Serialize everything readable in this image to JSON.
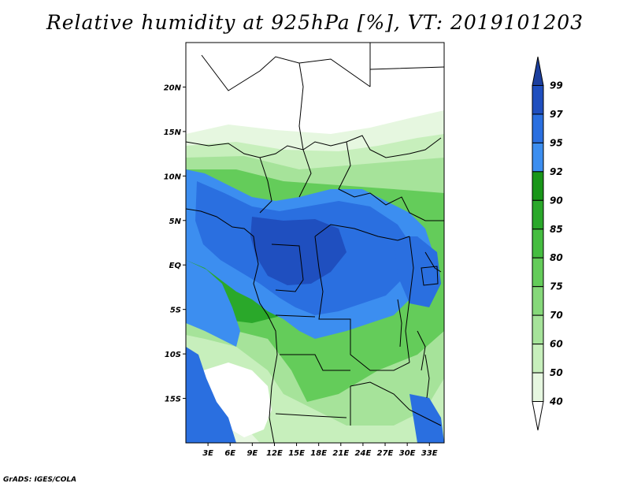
{
  "title": "Relative humidity at 925hPa [%], VT: 2019101203",
  "credit": "GrADS: IGES/COLA",
  "map": {
    "lon_range": [
      0,
      35
    ],
    "lat_range": [
      -20,
      25
    ],
    "lat_ticks": [
      {
        "value": 20,
        "label": "20N"
      },
      {
        "value": 15,
        "label": "15N"
      },
      {
        "value": 10,
        "label": "10N"
      },
      {
        "value": 5,
        "label": "5N"
      },
      {
        "value": 0,
        "label": "EQ"
      },
      {
        "value": -5,
        "label": "5S"
      },
      {
        "value": -10,
        "label": "10S"
      },
      {
        "value": -15,
        "label": "15S"
      }
    ],
    "lon_ticks": [
      {
        "value": 3,
        "label": "3E"
      },
      {
        "value": 6,
        "label": "6E"
      },
      {
        "value": 9,
        "label": "9E"
      },
      {
        "value": 12,
        "label": "12E"
      },
      {
        "value": 15,
        "label": "15E"
      },
      {
        "value": 18,
        "label": "18E"
      },
      {
        "value": 21,
        "label": "21E"
      },
      {
        "value": 24,
        "label": "24E"
      },
      {
        "value": 27,
        "label": "27E"
      },
      {
        "value": 30,
        "label": "30E"
      },
      {
        "value": 33,
        "label": "33E"
      }
    ]
  },
  "colorbar": {
    "levels": [
      "40",
      "50",
      "60",
      "70",
      "75",
      "80",
      "85",
      "90",
      "92",
      "95",
      "97",
      "99"
    ],
    "colors": [
      "#ffffff",
      "#e6f7e0",
      "#c7efbc",
      "#a6e39a",
      "#86d87a",
      "#64cc5a",
      "#45bd40",
      "#2aa82a",
      "#199619",
      "#3c8ef0",
      "#2a6fe0",
      "#1f4fbf",
      "#1c3f9e"
    ]
  }
}
